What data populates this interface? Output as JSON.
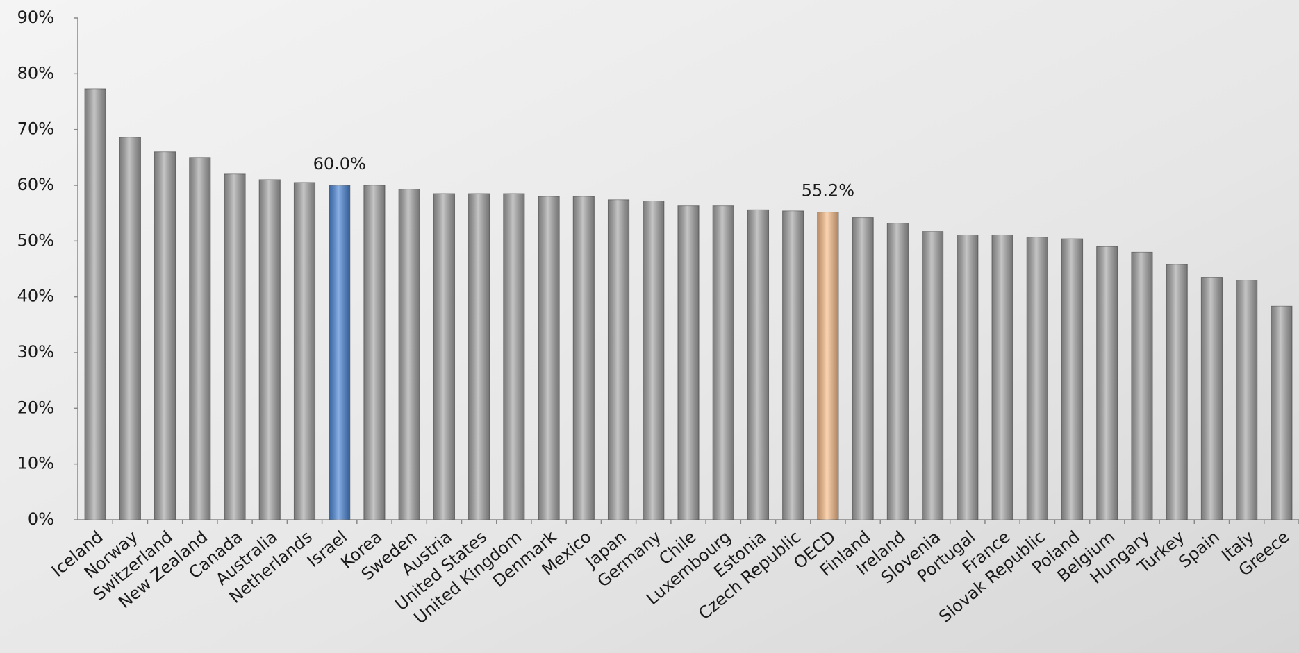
{
  "chart_data": {
    "type": "bar",
    "categories": [
      "Iceland",
      "Norway",
      "Switzerland",
      "New Zealand",
      "Canada",
      "Australia",
      "Netherlands",
      "Israel",
      "Korea",
      "Sweden",
      "Austria",
      "United States",
      "United Kingdom",
      "Denmark",
      "Mexico",
      "Japan",
      "Germany",
      "Chile",
      "Luxembourg",
      "Estonia",
      "Czech Republic",
      "OECD",
      "Finland",
      "Ireland",
      "Slovenia",
      "Portugal",
      "France",
      "Slovak Republic",
      "Poland",
      "Belgium",
      "Hungary",
      "Turkey",
      "Spain",
      "Italy",
      "Greece"
    ],
    "values": [
      77.3,
      68.6,
      66,
      65,
      62,
      61,
      60.5,
      60.0,
      60,
      59.3,
      58.5,
      58.5,
      58.5,
      58,
      58,
      57.4,
      57.2,
      56.3,
      56.3,
      55.6,
      55.4,
      55.2,
      54.2,
      53.2,
      51.7,
      51.1,
      51.1,
      50.7,
      50.4,
      49,
      48,
      45.8,
      43.5,
      43,
      38.3
    ],
    "value_labels": [
      null,
      null,
      null,
      null,
      null,
      null,
      null,
      "60.0%",
      null,
      null,
      null,
      null,
      null,
      null,
      null,
      null,
      null,
      null,
      null,
      null,
      null,
      "55.2%",
      null,
      null,
      null,
      null,
      null,
      null,
      null,
      null,
      null,
      null,
      null,
      null,
      null
    ],
    "colors": [
      "#a6a6a6",
      "#a6a6a6",
      "#a6a6a6",
      "#a6a6a6",
      "#a6a6a6",
      "#a6a6a6",
      "#a6a6a6",
      "#4a86d8",
      "#a6a6a6",
      "#a6a6a6",
      "#a6a6a6",
      "#a6a6a6",
      "#a6a6a6",
      "#a6a6a6",
      "#a6a6a6",
      "#a6a6a6",
      "#a6a6a6",
      "#a6a6a6",
      "#a6a6a6",
      "#a6a6a6",
      "#a6a6a6",
      "#fbbf8a",
      "#a6a6a6",
      "#a6a6a6",
      "#a6a6a6",
      "#a6a6a6",
      "#a6a6a6",
      "#a6a6a6",
      "#a6a6a6",
      "#a6a6a6",
      "#a6a6a6",
      "#a6a6a6",
      "#a6a6a6",
      "#a6a6a6",
      "#a6a6a6"
    ],
    "ylim": [
      0,
      90
    ],
    "yticks": [
      {
        "value": 0,
        "label": "0%"
      },
      {
        "value": 10,
        "label": "10%"
      },
      {
        "value": 20,
        "label": "20%"
      },
      {
        "value": 30,
        "label": "30%"
      },
      {
        "value": 40,
        "label": "40%"
      },
      {
        "value": 50,
        "label": "50%"
      },
      {
        "value": 60,
        "label": "60%"
      },
      {
        "value": 70,
        "label": "70%"
      },
      {
        "value": 80,
        "label": "80%"
      },
      {
        "value": 90,
        "label": "90%"
      }
    ]
  }
}
